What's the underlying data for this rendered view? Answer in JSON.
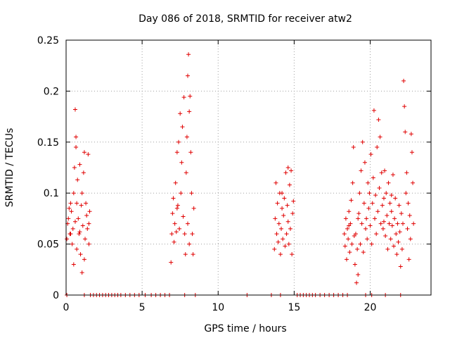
{
  "chart_data": {
    "type": "scatter",
    "title": "Day 086 of 2018, SRMTID for receiver atw2",
    "xlabel": "GPS time / hours",
    "ylabel": "SRMTID / TECUs",
    "xlim": [
      0,
      24
    ],
    "ylim": [
      0,
      0.25
    ],
    "xticks": [
      0,
      5,
      10,
      15,
      20
    ],
    "xtick_labels": [
      "0",
      "5",
      "10",
      "15",
      "20"
    ],
    "yticks": [
      0,
      0.05,
      0.1,
      0.15,
      0.2,
      0.25
    ],
    "ytick_labels": [
      "0",
      "0.05",
      "0.1",
      "0.15",
      "0.2",
      "0.25"
    ],
    "grid": true,
    "marker": "+",
    "color": "#e00000",
    "series": [
      {
        "name": "SRMTID",
        "points": [
          [
            0.05,
            0.055
          ],
          [
            0.1,
            0.07
          ],
          [
            0.15,
            0.075
          ],
          [
            0.2,
            0.085
          ],
          [
            0.25,
            0.06
          ],
          [
            0.3,
            0.09
          ],
          [
            0.35,
            0.082
          ],
          [
            0.4,
            0.05
          ],
          [
            0.45,
            0.065
          ],
          [
            0.5,
            0.1
          ],
          [
            0.5,
            0.03
          ],
          [
            0.55,
            0.125
          ],
          [
            0.6,
            0.072
          ],
          [
            0.6,
            0.182
          ],
          [
            0.65,
            0.145
          ],
          [
            0.65,
            0.155
          ],
          [
            0.7,
            0.09
          ],
          [
            0.7,
            0.045
          ],
          [
            0.75,
            0.113
          ],
          [
            0.8,
            0.075
          ],
          [
            0.85,
            0.06
          ],
          [
            0.9,
            0.128
          ],
          [
            0.95,
            0.04
          ],
          [
            1.0,
            0.088
          ],
          [
            1.05,
            0.022
          ],
          [
            1.05,
            0.1
          ],
          [
            1.1,
            0.068
          ],
          [
            1.15,
            0.12
          ],
          [
            1.2,
            0.035
          ],
          [
            1.2,
            0.14
          ],
          [
            1.25,
            0.055
          ],
          [
            1.3,
            0.09
          ],
          [
            1.35,
            0.078
          ],
          [
            1.4,
            0.065
          ],
          [
            1.45,
            0.138
          ],
          [
            1.5,
            0.05
          ],
          [
            1.5,
            0.07
          ],
          [
            1.55,
            0.082
          ],
          [
            0.3,
            0.06
          ],
          [
            0.9,
            0.062
          ],
          [
            6.9,
            0.032
          ],
          [
            6.95,
            0.06
          ],
          [
            7.0,
            0.08
          ],
          [
            7.05,
            0.095
          ],
          [
            7.1,
            0.052
          ],
          [
            7.15,
            0.07
          ],
          [
            7.2,
            0.11
          ],
          [
            7.25,
            0.062
          ],
          [
            7.3,
            0.14
          ],
          [
            7.35,
            0.088
          ],
          [
            7.4,
            0.15
          ],
          [
            7.45,
            0.065
          ],
          [
            7.5,
            0.178
          ],
          [
            7.55,
            0.1
          ],
          [
            7.6,
            0.13
          ],
          [
            7.65,
            0.165
          ],
          [
            7.7,
            0.077
          ],
          [
            7.75,
            0.194
          ],
          [
            7.8,
            0.06
          ],
          [
            7.85,
            0.04
          ],
          [
            7.9,
            0.12
          ],
          [
            7.95,
            0.155
          ],
          [
            8.0,
            0.215
          ],
          [
            8.0,
            0.07
          ],
          [
            8.05,
            0.236
          ],
          [
            8.1,
            0.18
          ],
          [
            8.15,
            0.195
          ],
          [
            8.2,
            0.14
          ],
          [
            8.25,
            0.1
          ],
          [
            8.3,
            0.06
          ],
          [
            8.35,
            0.04
          ],
          [
            8.4,
            0.085
          ],
          [
            8.1,
            0.05
          ],
          [
            7.3,
            0.085
          ],
          [
            13.7,
            0.045
          ],
          [
            13.75,
            0.075
          ],
          [
            13.8,
            0.11
          ],
          [
            13.85,
            0.06
          ],
          [
            13.9,
            0.09
          ],
          [
            13.95,
            0.052
          ],
          [
            14.0,
            0.07
          ],
          [
            14.05,
            0.1
          ],
          [
            14.1,
            0.04
          ],
          [
            14.15,
            0.065
          ],
          [
            14.2,
            0.085
          ],
          [
            14.25,
            0.055
          ],
          [
            14.3,
            0.078
          ],
          [
            14.35,
            0.095
          ],
          [
            14.4,
            0.048
          ],
          [
            14.45,
            0.12
          ],
          [
            14.5,
            0.06
          ],
          [
            14.55,
            0.088
          ],
          [
            14.6,
            0.072
          ],
          [
            14.65,
            0.05
          ],
          [
            14.7,
            0.108
          ],
          [
            14.75,
            0.065
          ],
          [
            14.8,
            0.122
          ],
          [
            14.85,
            0.04
          ],
          [
            14.9,
            0.08
          ],
          [
            14.95,
            0.092
          ],
          [
            14.6,
            0.125
          ],
          [
            14.2,
            0.1
          ],
          [
            18.3,
            0.06
          ],
          [
            18.35,
            0.048
          ],
          [
            18.4,
            0.075
          ],
          [
            18.45,
            0.035
          ],
          [
            18.5,
            0.065
          ],
          [
            18.55,
            0.055
          ],
          [
            18.6,
            0.082
          ],
          [
            18.65,
            0.042
          ],
          [
            18.7,
            0.07
          ],
          [
            18.75,
            0.093
          ],
          [
            18.8,
            0.05
          ],
          [
            18.85,
            0.11
          ],
          [
            18.9,
            0.145
          ],
          [
            18.95,
            0.058
          ],
          [
            19.0,
            0.03
          ],
          [
            19.05,
            0.06
          ],
          [
            19.1,
            0.012
          ],
          [
            19.15,
            0.045
          ],
          [
            19.2,
            0.02
          ],
          [
            19.25,
            0.08
          ],
          [
            19.3,
            0.1
          ],
          [
            19.35,
            0.05
          ],
          [
            19.4,
            0.122
          ],
          [
            19.45,
            0.07
          ],
          [
            19.5,
            0.15
          ],
          [
            19.55,
            0.042
          ],
          [
            19.6,
            0.09
          ],
          [
            19.65,
            0.13
          ],
          [
            19.7,
            0.065
          ],
          [
            19.75,
            0.075
          ],
          [
            19.8,
            0.055
          ],
          [
            19.85,
            0.11
          ],
          [
            19.9,
            0.085
          ],
          [
            19.95,
            0.1
          ],
          [
            20.0,
            0.068
          ],
          [
            20.05,
            0.138
          ],
          [
            20.1,
            0.05
          ],
          [
            20.15,
            0.09
          ],
          [
            20.2,
            0.115
          ],
          [
            20.25,
            0.181
          ],
          [
            20.3,
            0.075
          ],
          [
            20.35,
            0.098
          ],
          [
            20.4,
            0.06
          ],
          [
            20.45,
            0.145
          ],
          [
            20.5,
            0.082
          ],
          [
            20.55,
            0.172
          ],
          [
            20.6,
            0.105
          ],
          [
            20.65,
            0.155
          ],
          [
            20.7,
            0.07
          ],
          [
            20.75,
            0.12
          ],
          [
            20.8,
            0.088
          ],
          [
            20.85,
            0.065
          ],
          [
            20.9,
            0.095
          ],
          [
            20.95,
            0.122
          ],
          [
            21.0,
            0.058
          ],
          [
            21.05,
            0.1
          ],
          [
            21.1,
            0.078
          ],
          [
            21.15,
            0.045
          ],
          [
            21.2,
            0.11
          ],
          [
            21.25,
            0.07
          ],
          [
            21.3,
            0.09
          ],
          [
            21.35,
            0.055
          ],
          [
            21.4,
            0.082
          ],
          [
            21.45,
            0.068
          ],
          [
            21.5,
            0.118
          ],
          [
            21.55,
            0.048
          ],
          [
            21.6,
            0.075
          ],
          [
            21.65,
            0.095
          ],
          [
            21.7,
            0.06
          ],
          [
            21.75,
            0.04
          ],
          [
            21.8,
            0.07
          ],
          [
            21.85,
            0.052
          ],
          [
            21.9,
            0.088
          ],
          [
            21.95,
            0.062
          ],
          [
            22.0,
            0.028
          ],
          [
            22.05,
            0.08
          ],
          [
            22.1,
            0.045
          ],
          [
            22.15,
            0.07
          ],
          [
            22.2,
            0.21
          ],
          [
            22.25,
            0.185
          ],
          [
            22.3,
            0.16
          ],
          [
            22.35,
            0.1
          ],
          [
            22.4,
            0.12
          ],
          [
            22.45,
            0.065
          ],
          [
            22.5,
            0.09
          ],
          [
            22.55,
            0.035
          ],
          [
            22.6,
            0.078
          ],
          [
            22.65,
            0.055
          ],
          [
            22.7,
            0.158
          ],
          [
            22.75,
            0.14
          ],
          [
            22.8,
            0.11
          ],
          [
            22.85,
            0.07
          ],
          [
            19.2,
            0.075
          ],
          [
            20.9,
            0.072
          ],
          [
            21.4,
            0.098
          ],
          [
            18.6,
            0.068
          ],
          [
            0.05,
            0
          ],
          [
            1.2,
            0
          ],
          [
            1.6,
            0
          ],
          [
            1.8,
            0
          ],
          [
            2.0,
            0
          ],
          [
            2.2,
            0
          ],
          [
            2.4,
            0
          ],
          [
            2.6,
            0
          ],
          [
            2.8,
            0
          ],
          [
            3.0,
            0
          ],
          [
            3.2,
            0
          ],
          [
            3.4,
            0
          ],
          [
            3.6,
            0
          ],
          [
            3.9,
            0
          ],
          [
            4.2,
            0
          ],
          [
            4.5,
            0
          ],
          [
            4.8,
            0
          ],
          [
            5.2,
            0
          ],
          [
            5.6,
            0
          ],
          [
            5.9,
            0
          ],
          [
            6.2,
            0
          ],
          [
            6.5,
            0
          ],
          [
            6.8,
            0
          ],
          [
            7.8,
            0
          ],
          [
            8.5,
            0
          ],
          [
            11.9,
            0
          ],
          [
            13.5,
            0
          ],
          [
            14.1,
            0
          ],
          [
            15.2,
            0
          ],
          [
            15.4,
            0
          ],
          [
            15.6,
            0
          ],
          [
            15.8,
            0
          ],
          [
            16.0,
            0
          ],
          [
            16.2,
            0
          ],
          [
            16.4,
            0
          ],
          [
            16.7,
            0
          ],
          [
            17.0,
            0
          ],
          [
            17.3,
            0
          ],
          [
            17.6,
            0
          ],
          [
            17.9,
            0
          ],
          [
            18.2,
            0
          ],
          [
            18.5,
            0
          ],
          [
            19.7,
            0
          ],
          [
            20.1,
            0
          ],
          [
            21.0,
            0
          ],
          [
            22.0,
            0
          ]
        ]
      }
    ]
  }
}
